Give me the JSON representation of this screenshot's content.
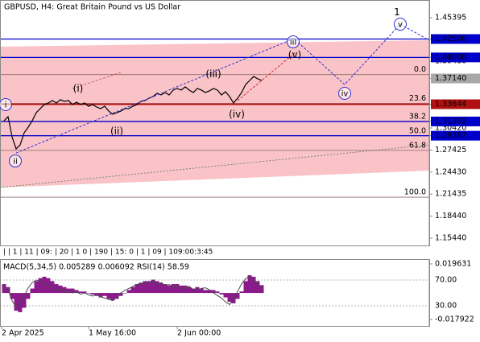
{
  "chart_data": [
    {
      "type": "line",
      "title": "GBPUSD, H4:  Great Britain Pound vs US Dollar",
      "period_separators": "| | 1 | 11 | 09: | 20 | 1 0 | 190 | 15: 0 | 1 | 09 | 109:00:3:45",
      "x": [
        0,
        1,
        2,
        3,
        4,
        5,
        6,
        7,
        8,
        9,
        10,
        11,
        12,
        13,
        14,
        15,
        16,
        17,
        18,
        19,
        20,
        21,
        22,
        23,
        24,
        25,
        26,
        27,
        28,
        29,
        30,
        31,
        32,
        33,
        34,
        35,
        36,
        37,
        38,
        39,
        40,
        41,
        42,
        43,
        44,
        45,
        46,
        47,
        48,
        49,
        50,
        51,
        52,
        53,
        54,
        55,
        56,
        57,
        58,
        59,
        60,
        61,
        62,
        63,
        64
      ],
      "values": [
        1.314,
        1.3195,
        1.2921,
        1.2758,
        1.2812,
        1.2976,
        1.3053,
        1.314,
        1.325,
        1.3305,
        1.3359,
        1.3381,
        1.3414,
        1.3381,
        1.3425,
        1.3403,
        1.3414,
        1.3359,
        1.3392,
        1.3359,
        1.3381,
        1.3337,
        1.3359,
        1.3326,
        1.3305,
        1.3337,
        1.3271,
        1.3228,
        1.325,
        1.3271,
        1.3305,
        1.3305,
        1.3337,
        1.3359,
        1.3403,
        1.3414,
        1.3446,
        1.3468,
        1.3512,
        1.349,
        1.3523,
        1.349,
        1.3556,
        1.3578,
        1.3556,
        1.36,
        1.3556,
        1.3523,
        1.3578,
        1.3556,
        1.3523,
        1.3545,
        1.3578,
        1.3556,
        1.349,
        1.3534,
        1.3468,
        1.3381,
        1.3446,
        1.3523,
        1.3632,
        1.3687,
        1.3741,
        1.3709,
        1.3687
      ],
      "color": "#000000",
      "xlim": [
        -1,
        105.6
      ],
      "xticks": [
        {
          "value": -0.6,
          "label": "2 Apr 2025"
        },
        {
          "value": 21,
          "label": "1 May 16:00"
        },
        {
          "value": 43,
          "label": "2 Jun 00:00"
        }
      ],
      "ylim": [
        1.1446,
        1.478
      ],
      "yticks": [
        1.45395,
        {
          "value": 1.425,
          "label": "1.42500"
        },
        {
          "value": 1.4,
          "label": "1.40000"
        },
        {
          "value": 1.3948,
          "label": "1.39480"
        },
        {
          "value": 1.3714,
          "label": "1.37140"
        },
        1.33644,
        1.31302,
        {
          "value": 1.3042,
          "label": "1.30420"
        },
        1.29367,
        1.27425,
        {
          "value": 1.2443,
          "label": "1.24430"
        },
        1.21435,
        {
          "value": 1.1844,
          "label": "1.18440"
        },
        {
          "value": 1.1544,
          "label": "1.15440"
        }
      ],
      "levels": [
        {
          "value": 1.425,
          "color": "#0000cd",
          "line": true
        },
        {
          "value": 1.4,
          "color": "#0000cd",
          "line": true
        },
        {
          "value": 1.3714,
          "color": "#a8a8a8",
          "line": false
        },
        {
          "value": 1.33644,
          "color": "#b01010",
          "line": true
        },
        {
          "value": 1.31302,
          "color": "#0000cd",
          "line": true
        },
        {
          "value": 1.29367,
          "color": "#0000cd",
          "line": true
        }
      ],
      "fib": {
        "color": "#8a6a6a",
        "levels": [
          {
            "label": "0.0",
            "value": 1.3767
          },
          {
            "label": "23.6",
            "value": 1.3374
          },
          {
            "label": "38.2",
            "value": 1.3131
          },
          {
            "label": "50.0",
            "value": 1.2934
          },
          {
            "label": "61.8",
            "value": 1.2737
          },
          {
            "label": "100.0",
            "value": 1.2101
          }
        ]
      },
      "channel": {
        "color": "#f9c3c8",
        "x": [
          -1,
          105.6
        ],
        "upper": [
          1.4146,
          1.4233
        ],
        "lower": [
          1.2233,
          1.2462
        ]
      },
      "forecasts": [
        {
          "color": "#3030d0",
          "x": [
            3,
            72,
            84.6,
            98.4,
            105.6
          ],
          "values": [
            1.2702,
            1.4255,
            1.3632,
            1.4452,
            1.4233
          ]
        },
        {
          "color": "#d03030",
          "x": [
            58,
            72.4
          ],
          "values": [
            1.3414,
            1.4069
          ]
        }
      ],
      "waves": [
        {
          "text": "i",
          "color": "#3030d0",
          "circle": true,
          "x": 0.4,
          "value": 1.3359
        },
        {
          "text": "ii",
          "color": "#3030d0",
          "circle": true,
          "x": 2.8,
          "value": 1.2593
        },
        {
          "text": "iii",
          "color": "#3030d0",
          "circle": true,
          "x": 71.8,
          "value": 1.4211
        },
        {
          "text": "iv",
          "color": "#3030d0",
          "circle": true,
          "x": 84.6,
          "value": 1.3512
        },
        {
          "text": "v",
          "color": "#3030d0",
          "circle": true,
          "x": 98.4,
          "value": 1.4452
        },
        {
          "text": "(i)",
          "color": "#c83232",
          "circle": false,
          "x": 18.4,
          "value": 1.3578
        },
        {
          "text": "(ii)",
          "color": "#c83232",
          "circle": false,
          "x": 28,
          "value": 1.2998
        },
        {
          "text": "(iii)",
          "color": "#c83232",
          "circle": false,
          "x": 52,
          "value": 1.3774
        },
        {
          "text": "(iv)",
          "color": "#c83232",
          "circle": false,
          "x": 57.8,
          "value": 1.3227
        },
        {
          "text": "(v)",
          "color": "#c83232",
          "circle": false,
          "x": 72.2,
          "value": 1.4036
        },
        {
          "text": "1",
          "color": "#c83232",
          "circle": false,
          "x": 97.6,
          "value": 1.4616
        }
      ]
    },
    {
      "type": "bar",
      "title": "MACD(5,34,5) 0.005289 0.006092 RSI(14) 58.59",
      "x": [
        0,
        1,
        2,
        3,
        4,
        5,
        6,
        7,
        8,
        9,
        10,
        11,
        12,
        13,
        14,
        15,
        16,
        17,
        18,
        19,
        20,
        21,
        22,
        23,
        24,
        25,
        26,
        27,
        28,
        29,
        30,
        31,
        32,
        33,
        34,
        35,
        36,
        37,
        38,
        39,
        40,
        41,
        42,
        43,
        44,
        45,
        46,
        47,
        48,
        49,
        50,
        51,
        52,
        53,
        54,
        55,
        56,
        57,
        58,
        59,
        60,
        61,
        62,
        63,
        64
      ],
      "xlim": [
        -1,
        105.6
      ],
      "ylim": [
        -0.022276,
        0.022897
      ],
      "yticks": [
        0.019631,
        -0.017922
      ],
      "y2lim": [
        -1.25,
        102.5
      ],
      "y2ticks": [
        {
          "value": 70,
          "label": "70.00"
        },
        {
          "value": 30,
          "label": "30.00"
        }
      ],
      "series": [
        {
          "color": "#8b1a8b",
          "values": [
            0.006,
            0.004,
            -0.004,
            -0.012,
            -0.013,
            -0.01,
            -0.004,
            0.003,
            0.008,
            0.01,
            0.011,
            0.01,
            0.008,
            0.006,
            0.005,
            0.004,
            0.003,
            0.003,
            0.002,
            0.001,
            0.001,
            0.0,
            -0.001,
            -0.002,
            -0.003,
            -0.002,
            -0.004,
            -0.005,
            -0.004,
            -0.002,
            0.0,
            0.002,
            0.004,
            0.006,
            0.007,
            0.008,
            0.008,
            0.009,
            0.008,
            0.007,
            0.006,
            0.005,
            0.006,
            0.006,
            0.005,
            0.005,
            0.004,
            0.003,
            0.004,
            0.003,
            0.002,
            0.002,
            0.002,
            0.001,
            -0.001,
            -0.003,
            -0.006,
            -0.007,
            -0.004,
            0.001,
            0.008,
            0.012,
            0.011,
            0.008,
            0.005289
          ]
        },
        {
          "color": "#4a4a4a",
          "axis": "y2",
          "values": [
            60,
            55,
            38,
            28,
            32,
            45,
            58,
            66,
            70,
            68,
            64,
            62,
            58,
            55,
            56,
            52,
            54,
            50,
            52,
            48,
            50,
            47,
            45,
            48,
            44,
            42,
            40,
            38,
            44,
            50,
            54,
            57,
            60,
            63,
            65,
            64,
            67,
            68,
            63,
            66,
            61,
            63,
            58,
            61,
            56,
            59,
            60,
            55,
            53,
            57,
            58,
            55,
            50,
            46,
            42,
            36,
            32,
            40,
            52,
            64,
            72,
            76,
            70,
            63,
            58.59
          ]
        }
      ]
    }
  ]
}
